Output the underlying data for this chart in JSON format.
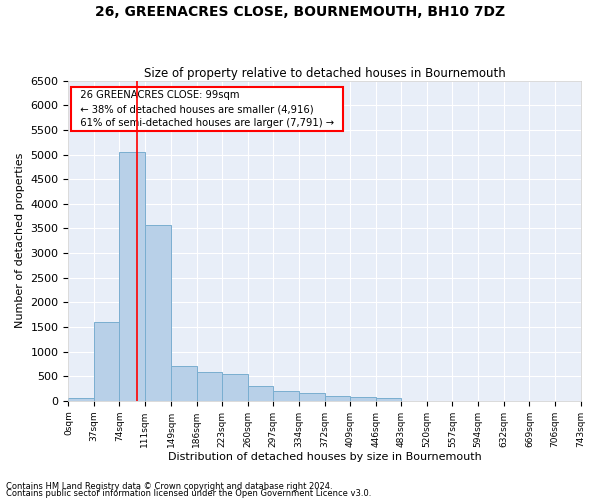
{
  "title": "26, GREENACRES CLOSE, BOURNEMOUTH, BH10 7DZ",
  "subtitle": "Size of property relative to detached houses in Bournemouth",
  "xlabel": "Distribution of detached houses by size in Bournemouth",
  "ylabel": "Number of detached properties",
  "bar_color": "#b8d0e8",
  "bar_edge_color": "#7aaed0",
  "background_color": "#e8eef8",
  "property_line_x": 99,
  "bin_edges": [
    0,
    37,
    74,
    111,
    149,
    186,
    223,
    260,
    297,
    334,
    372,
    409,
    446,
    483,
    520,
    557,
    594,
    632,
    669,
    706,
    743
  ],
  "bin_counts": [
    50,
    1600,
    5050,
    3580,
    700,
    580,
    540,
    300,
    200,
    150,
    100,
    80,
    50,
    0,
    0,
    0,
    0,
    0,
    0,
    0
  ],
  "ylim": [
    0,
    6500
  ],
  "yticks": [
    0,
    500,
    1000,
    1500,
    2000,
    2500,
    3000,
    3500,
    4000,
    4500,
    5000,
    5500,
    6000,
    6500
  ],
  "annotation_text": "  26 GREENACRES CLOSE: 99sqm  \n  ← 38% of detached houses are smaller (4,916)  \n  61% of semi-detached houses are larger (7,791) →  ",
  "footnote1": "Contains HM Land Registry data © Crown copyright and database right 2024.",
  "footnote2": "Contains public sector information licensed under the Open Government Licence v3.0."
}
